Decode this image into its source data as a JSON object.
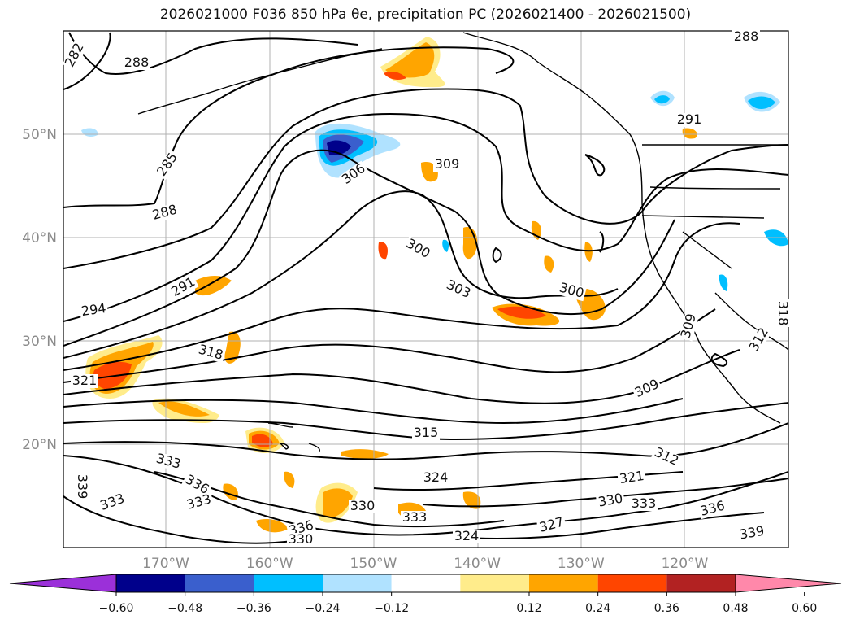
{
  "title": "2026021000 F036 850 hPa θe, precipitation PC (2026021400 - 2026021500)",
  "map": {
    "lat_labels": [
      {
        "lat": 50,
        "text": "50°N"
      },
      {
        "lat": 40,
        "text": "40°N"
      },
      {
        "lat": 30,
        "text": "30°N"
      },
      {
        "lat": 20,
        "text": "20°N"
      }
    ],
    "lon_labels": [
      {
        "lon": -170,
        "text": "170°W"
      },
      {
        "lon": -160,
        "text": "160°W"
      },
      {
        "lon": -150,
        "text": "150°W"
      },
      {
        "lon": -140,
        "text": "140°W"
      },
      {
        "lon": -130,
        "text": "130°W"
      },
      {
        "lon": -120,
        "text": "120°W"
      }
    ],
    "contour_labels": [
      "282",
      "288",
      "288",
      "285",
      "288",
      "291",
      "291",
      "294",
      "306",
      "309",
      "300",
      "303",
      "300",
      "309",
      "318",
      "321",
      "309",
      "315",
      "312",
      "333",
      "333",
      "336",
      "333",
      "339",
      "324",
      "330",
      "333",
      "336",
      "330",
      "324",
      "327",
      "321",
      "330",
      "333",
      "336",
      "339",
      "318",
      "312"
    ]
  },
  "colorbar": {
    "ticks": [
      "−0.60",
      "−0.48",
      "−0.36",
      "−0.24",
      "−0.12",
      "0.12",
      "0.24",
      "0.36",
      "0.48",
      "0.60"
    ],
    "colors": [
      "#9b30d9",
      "#00008b",
      "#3a5fcd",
      "#00bfff",
      "#b0e2ff",
      "#ffffff",
      "#ffec8b",
      "#ffa500",
      "#ff4500",
      "#b22222",
      "#ff88aa"
    ]
  }
}
